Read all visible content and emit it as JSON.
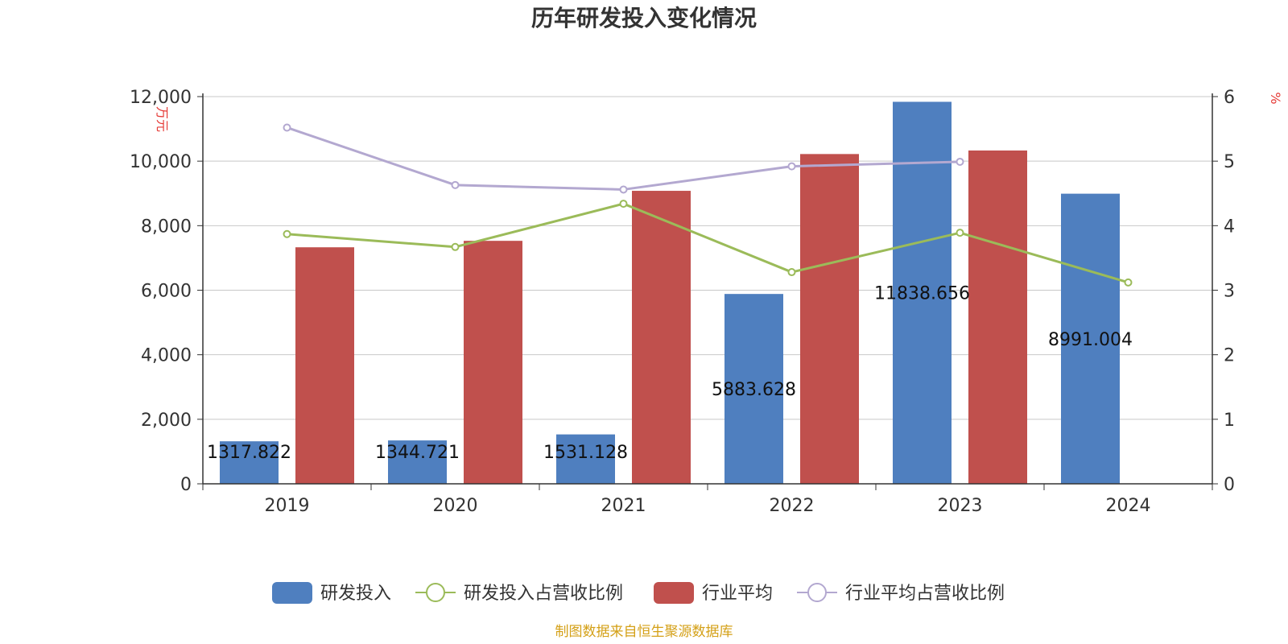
{
  "chart_data": {
    "type": "bar",
    "title": "历年研发投入变化情况",
    "categories": [
      "2019",
      "2020",
      "2021",
      "2022",
      "2023",
      "2024"
    ],
    "y_left": {
      "unit": "万元",
      "ylim": [
        0,
        12000
      ],
      "ticks": [
        "0",
        "2,000",
        "4,000",
        "6,000",
        "8,000",
        "10,000",
        "12,000"
      ],
      "tick_values": [
        0,
        2000,
        4000,
        6000,
        8000,
        10000,
        12000
      ]
    },
    "y_right": {
      "unit": "%",
      "ylim": [
        0,
        6
      ],
      "ticks": [
        "0",
        "1",
        "2",
        "3",
        "4",
        "5",
        "6"
      ],
      "tick_values": [
        0,
        1,
        2,
        3,
        4,
        5,
        6
      ]
    },
    "series": [
      {
        "name": "研发投入",
        "kind": "bar",
        "axis": "left",
        "color": "#4f7fbf",
        "values": [
          1317.822,
          1344.721,
          1531.128,
          5883.628,
          11838.656,
          8991.004
        ],
        "labels": [
          "1317.822",
          "1344.721",
          "1531.128",
          "5883.628",
          "11838.656",
          "8991.004"
        ]
      },
      {
        "name": "研发投入占营收比例",
        "kind": "line",
        "axis": "right",
        "color": "#9bbb59",
        "values": [
          3.87,
          3.67,
          4.34,
          3.28,
          3.89,
          3.12
        ]
      },
      {
        "name": "行业平均",
        "kind": "bar",
        "axis": "left",
        "color": "#c0504d",
        "values": [
          7330,
          7530,
          9080,
          10220,
          10330,
          null
        ]
      },
      {
        "name": "行业平均占营收比例",
        "kind": "line",
        "axis": "right",
        "color": "#b3a8d0",
        "values": [
          5.52,
          4.63,
          4.56,
          4.92,
          4.99,
          null
        ]
      }
    ],
    "grid": true,
    "legend_position": "bottom"
  },
  "source": "制图数据来自恒生聚源数据库"
}
